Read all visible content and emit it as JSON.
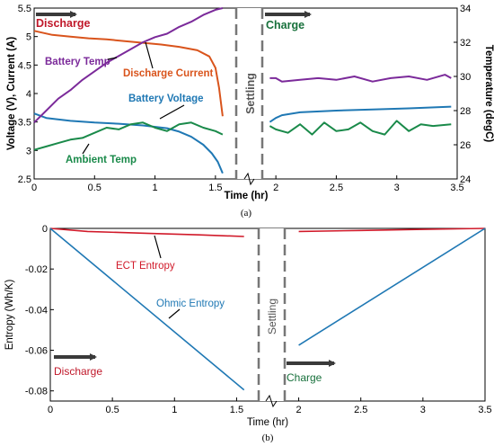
{
  "chart_data": [
    {
      "type": "line",
      "panel": "a",
      "caption": "(a)",
      "xlabel": "Time (hr)",
      "ylabel_left": "Voltage (V), Current (A)",
      "ylabel_right": "Temperature (degC)",
      "xlim": [
        0,
        3.5
      ],
      "ylim_left": [
        2.5,
        5.5
      ],
      "ylim_right": [
        24,
        34
      ],
      "x_ticks": [
        "0",
        "0.5",
        "1",
        "1.5",
        "2",
        "2.5",
        "3",
        "3.5"
      ],
      "y_ticks_left": [
        "2.5",
        "3",
        "3.5",
        "4",
        "4.5",
        "5",
        "5.5"
      ],
      "y_ticks_right": [
        "24",
        "26",
        "28",
        "30",
        "32",
        "34"
      ],
      "phase_labels": {
        "discharge": "Discharge",
        "charge": "Charge",
        "settling": "Settling"
      },
      "phase_colors": {
        "discharge": "#c0182a",
        "charge": "#17703b"
      },
      "series": [
        {
          "name": "Discharge Current",
          "axis": "left",
          "color": "#d9541c",
          "x": [
            0,
            0.15,
            0.3,
            0.45,
            0.6,
            0.75,
            0.9,
            1.05,
            1.2,
            1.35,
            1.45,
            1.5,
            1.53,
            1.56
          ],
          "y": [
            5.1,
            5.03,
            5.0,
            4.97,
            4.95,
            4.92,
            4.89,
            4.86,
            4.82,
            4.76,
            4.65,
            4.45,
            4.1,
            3.6
          ]
        },
        {
          "name": "Battery Voltage",
          "axis": "left",
          "color": "#1f78b4",
          "x": [
            0,
            0.1,
            0.3,
            0.5,
            0.7,
            0.9,
            1.1,
            1.2,
            1.3,
            1.4,
            1.47,
            1.52,
            1.56
          ],
          "y": [
            3.65,
            3.57,
            3.52,
            3.49,
            3.47,
            3.44,
            3.39,
            3.33,
            3.24,
            3.1,
            2.95,
            2.8,
            2.6
          ],
          "x2": [
            1.95,
            2.0,
            2.05,
            2.2,
            2.5,
            2.8,
            3.1,
            3.45
          ],
          "y2": [
            3.5,
            3.57,
            3.62,
            3.67,
            3.7,
            3.72,
            3.74,
            3.77
          ]
        },
        {
          "name": "Battery Temp",
          "axis": "right",
          "color": "#7b2a9a",
          "x": [
            0,
            0.1,
            0.2,
            0.3,
            0.4,
            0.5,
            0.6,
            0.7,
            0.8,
            0.9,
            1.0,
            1.1,
            1.2,
            1.3,
            1.4,
            1.5,
            1.56
          ],
          "y": [
            27.3,
            28.0,
            28.7,
            29.2,
            29.8,
            30.3,
            30.8,
            31.2,
            31.6,
            32.0,
            32.3,
            32.5,
            32.9,
            33.2,
            33.6,
            33.9,
            34.0
          ],
          "x2": [
            1.95,
            2.0,
            2.05,
            2.2,
            2.35,
            2.5,
            2.65,
            2.8,
            2.95,
            3.1,
            3.25,
            3.4,
            3.45
          ],
          "y2": [
            29.9,
            29.9,
            29.7,
            29.8,
            29.9,
            29.8,
            30.0,
            29.7,
            29.9,
            30.0,
            29.8,
            30.1,
            29.9
          ]
        },
        {
          "name": "Ambient Temp",
          "axis": "right",
          "color": "#1a8a4a",
          "x": [
            0,
            0.1,
            0.2,
            0.3,
            0.4,
            0.5,
            0.6,
            0.7,
            0.8,
            0.9,
            1.0,
            1.1,
            1.2,
            1.3,
            1.4,
            1.5,
            1.56
          ],
          "y": [
            25.7,
            25.9,
            26.1,
            26.3,
            26.4,
            26.7,
            27.0,
            26.9,
            27.2,
            27.3,
            27.0,
            26.8,
            27.2,
            27.3,
            27.0,
            26.8,
            26.6
          ],
          "x2": [
            1.95,
            2.0,
            2.1,
            2.2,
            2.3,
            2.4,
            2.5,
            2.6,
            2.7,
            2.8,
            2.9,
            3.0,
            3.1,
            3.2,
            3.3,
            3.45
          ],
          "y2": [
            27.1,
            26.9,
            26.7,
            27.2,
            26.6,
            27.3,
            26.8,
            26.9,
            27.3,
            26.8,
            26.6,
            27.4,
            26.8,
            27.2,
            27.1,
            27.2
          ]
        }
      ]
    },
    {
      "type": "line",
      "panel": "b",
      "caption": "(b)",
      "xlabel": "Time (hr)",
      "ylabel": "Entropy (Wh/K)",
      "xlim": [
        0,
        3.5
      ],
      "ylim": [
        -0.085,
        0
      ],
      "x_ticks": [
        "0",
        "0.5",
        "1",
        "1.5",
        "2",
        "2.5",
        "3",
        "3.5"
      ],
      "y_ticks": [
        "-0.08",
        "-0.06",
        "-0.04",
        "-0.02",
        "0"
      ],
      "phase_labels": {
        "discharge": "Discharge",
        "charge": "Charge",
        "settling": "Settling"
      },
      "phase_colors": {
        "discharge": "#c0182a",
        "charge": "#17703b"
      },
      "series": [
        {
          "name": "ECT Entropy",
          "color": "#d11a2a",
          "x": [
            0,
            0.3,
            0.8,
            1.2,
            1.56
          ],
          "y": [
            0,
            -0.0015,
            -0.0025,
            -0.0032,
            -0.004
          ],
          "x2": [
            2.0,
            2.5,
            3.0,
            3.5
          ],
          "y2": [
            -0.0015,
            -0.001,
            -0.0005,
            0
          ]
        },
        {
          "name": "Ohmic Entropy",
          "color": "#1f78b4",
          "x": [
            0,
            1.56
          ],
          "y": [
            0,
            -0.0795
          ],
          "x2": [
            2.0,
            3.5
          ],
          "y2": [
            -0.0575,
            0
          ]
        }
      ]
    }
  ]
}
